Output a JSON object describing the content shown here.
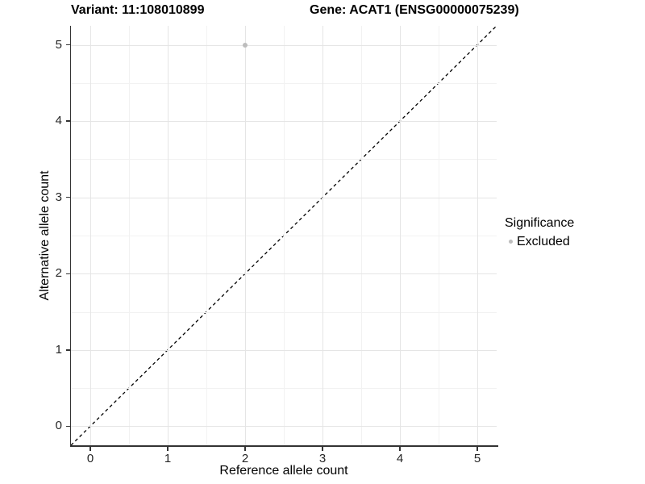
{
  "header": {
    "title_left": "Variant: 11:108010899",
    "title_right": "Gene: ACAT1 (ENSG00000075239)"
  },
  "chart_data": {
    "type": "scatter",
    "title_left": "Variant: 11:108010899",
    "title_right": "Gene: ACAT1 (ENSG00000075239)",
    "xlabel": "Reference allele count",
    "ylabel": "Alternative allele count",
    "xlim": [
      -0.25,
      5.25
    ],
    "ylim": [
      -0.25,
      5.25
    ],
    "x_ticks": [
      0,
      1,
      2,
      3,
      4,
      5
    ],
    "y_ticks": [
      0,
      1,
      2,
      3,
      4,
      5
    ],
    "x_minor_ticks": [
      0.5,
      1.5,
      2.5,
      3.5,
      4.5
    ],
    "y_minor_ticks": [
      0.5,
      1.5,
      2.5,
      3.5,
      4.5
    ],
    "grid": "major+minor",
    "reference_line": {
      "slope": 1,
      "intercept": 0,
      "style": "dashed",
      "color": "#000000"
    },
    "series": [
      {
        "name": "Excluded",
        "color": "#bdbdbd",
        "points": [
          {
            "x": 2,
            "y": 5
          }
        ]
      }
    ],
    "legend": {
      "title": "Significance",
      "position": "right",
      "items": [
        {
          "label": "Excluded",
          "color": "#bdbdbd"
        }
      ]
    }
  },
  "colors": {
    "background": "#ffffff",
    "grid_major": "#e5e5e5",
    "grid_minor": "#f2f2f2",
    "axis_line": "#333333",
    "tick_text": "#262626",
    "point": "#bdbdbd",
    "dashed_line": "#000000"
  }
}
